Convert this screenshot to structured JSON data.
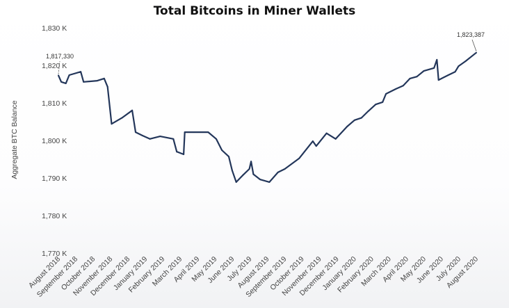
{
  "chart_data": {
    "type": "line",
    "title": "Total Bitcoins in Miner Wallets",
    "xlabel": "",
    "ylabel": "Aggregate BTC Balance",
    "ylim": [
      1770,
      1830
    ],
    "y_unit": "K",
    "yticks": [
      "1,830 K",
      "1,820 K",
      "1,810 K",
      "1,800 K",
      "1,790 K",
      "1,780 K",
      "1,770 K"
    ],
    "ytick_values": [
      1830,
      1820,
      1810,
      1800,
      1790,
      1780,
      1770
    ],
    "xlim": [
      "2018-08-01",
      "2020-08-01"
    ],
    "xticks": [
      "August 2018",
      "September 2018",
      "October 2018",
      "November 2018",
      "December 2018",
      "January 2019",
      "February 2019",
      "March 2019",
      "April 2019",
      "May 2019",
      "June 2019",
      "July 2019",
      "August 2019",
      "September 2019",
      "October 2019",
      "November 2019",
      "December 2019",
      "January 2020",
      "February 2020",
      "March 2020",
      "April 2020",
      "May 2020",
      "June 2020",
      "July 2020",
      "August 2020"
    ],
    "grid": false,
    "line_color": "#23365a",
    "series": [
      {
        "x": [
          "2018-08-01",
          "2018-08-06",
          "2018-08-14",
          "2018-08-20",
          "2018-09-09",
          "2018-09-14",
          "2018-10-08",
          "2018-10-20",
          "2018-10-26",
          "2018-11-02",
          "2018-11-20",
          "2018-12-08",
          "2018-12-14",
          "2018-12-26",
          "2019-01-08",
          "2019-01-26",
          "2019-02-18",
          "2019-02-24",
          "2019-03-08",
          "2019-03-10",
          "2019-03-26",
          "2019-04-20",
          "2019-05-04",
          "2019-05-14",
          "2019-05-26",
          "2019-06-01",
          "2019-06-08",
          "2019-06-20",
          "2019-07-01",
          "2019-07-04",
          "2019-07-08",
          "2019-07-20",
          "2019-08-05",
          "2019-08-20",
          "2019-09-01",
          "2019-09-26",
          "2019-10-20",
          "2019-10-26",
          "2019-11-13",
          "2019-11-29",
          "2019-12-19",
          "2020-01-01",
          "2020-01-13",
          "2020-01-25",
          "2020-02-07",
          "2020-02-19",
          "2020-02-25",
          "2020-03-13",
          "2020-03-26",
          "2020-04-07",
          "2020-04-19",
          "2020-05-01",
          "2020-05-19",
          "2020-05-24",
          "2020-05-27",
          "2020-06-13",
          "2020-06-25",
          "2020-07-01",
          "2020-07-13",
          "2020-08-01"
        ],
        "values": [
          1817.33,
          1815.6,
          1815.2,
          1817.4,
          1818.3,
          1815.6,
          1815.9,
          1816.5,
          1814.3,
          1804.4,
          1806.0,
          1808.0,
          1802.2,
          1801.3,
          1800.4,
          1801.1,
          1800.4,
          1797.0,
          1796.3,
          1802.2,
          1802.2,
          1802.2,
          1800.4,
          1797.4,
          1795.7,
          1792.0,
          1788.9,
          1790.8,
          1792.4,
          1794.4,
          1791.0,
          1789.6,
          1788.9,
          1791.5,
          1792.4,
          1795.2,
          1799.8,
          1798.5,
          1801.9,
          1800.4,
          1803.7,
          1805.4,
          1806.0,
          1807.8,
          1809.6,
          1810.2,
          1812.4,
          1813.7,
          1814.6,
          1816.5,
          1817.0,
          1818.5,
          1819.3,
          1821.5,
          1816.1,
          1817.4,
          1818.3,
          1819.8,
          1821.1,
          1823.387
        ]
      }
    ],
    "annotations": [
      {
        "text": "1,817,330",
        "x": "2018-08-01",
        "y": 1817.33
      },
      {
        "text": "1,823,387",
        "x": "2020-08-01",
        "y": 1823.387
      }
    ]
  }
}
